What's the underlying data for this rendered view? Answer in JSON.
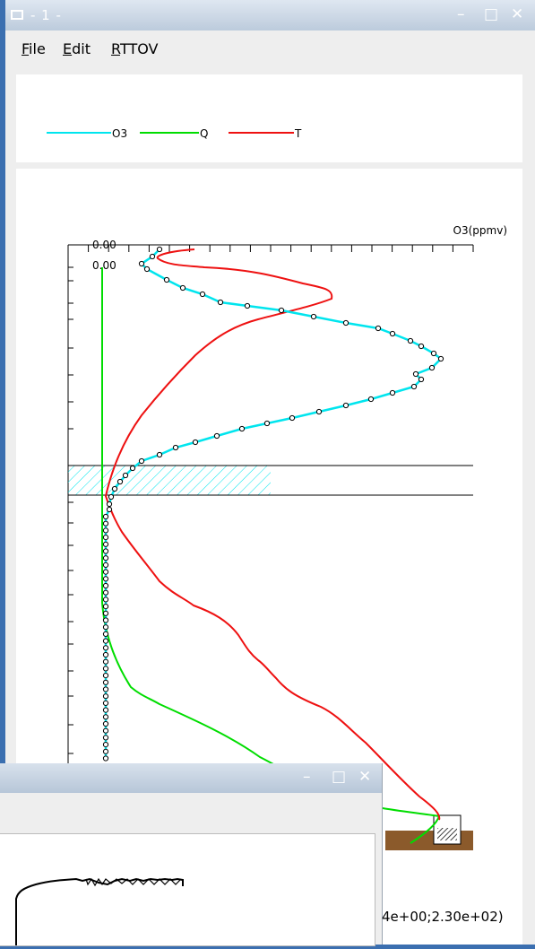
{
  "window": {
    "title": "- 1 -",
    "controls": {
      "minimize": "–",
      "maximize": "□",
      "close": "✕"
    }
  },
  "menu": {
    "file": {
      "accel": "F",
      "rest": "ile"
    },
    "edit": {
      "accel": "E",
      "rest": "dit"
    },
    "rttov": {
      "accel": "R",
      "rest": "TTOV"
    }
  },
  "legend": [
    {
      "name": "O3",
      "color": "#00e5ee"
    },
    {
      "name": "Q",
      "color": "#00dd00"
    },
    {
      "name": "T",
      "color": "#ee1111"
    }
  ],
  "chart_data": {
    "type": "line",
    "xlabel": "O3(ppmv)",
    "top_tick_labels": [
      "0.00",
      "0.00"
    ],
    "readout": "4e+00;2.30e+02)",
    "series": [
      {
        "name": "O3",
        "color": "#00e5ee",
        "markers": true
      },
      {
        "name": "Q",
        "color": "#00dd00",
        "markers": false
      },
      {
        "name": "T",
        "color": "#ee1111",
        "markers": false
      }
    ],
    "surface_color": "#8b5a2b",
    "hatch_color": "#00e5ee"
  },
  "window2": {
    "controls": {
      "minimize": "–",
      "maximize": "□",
      "close": "✕"
    }
  }
}
